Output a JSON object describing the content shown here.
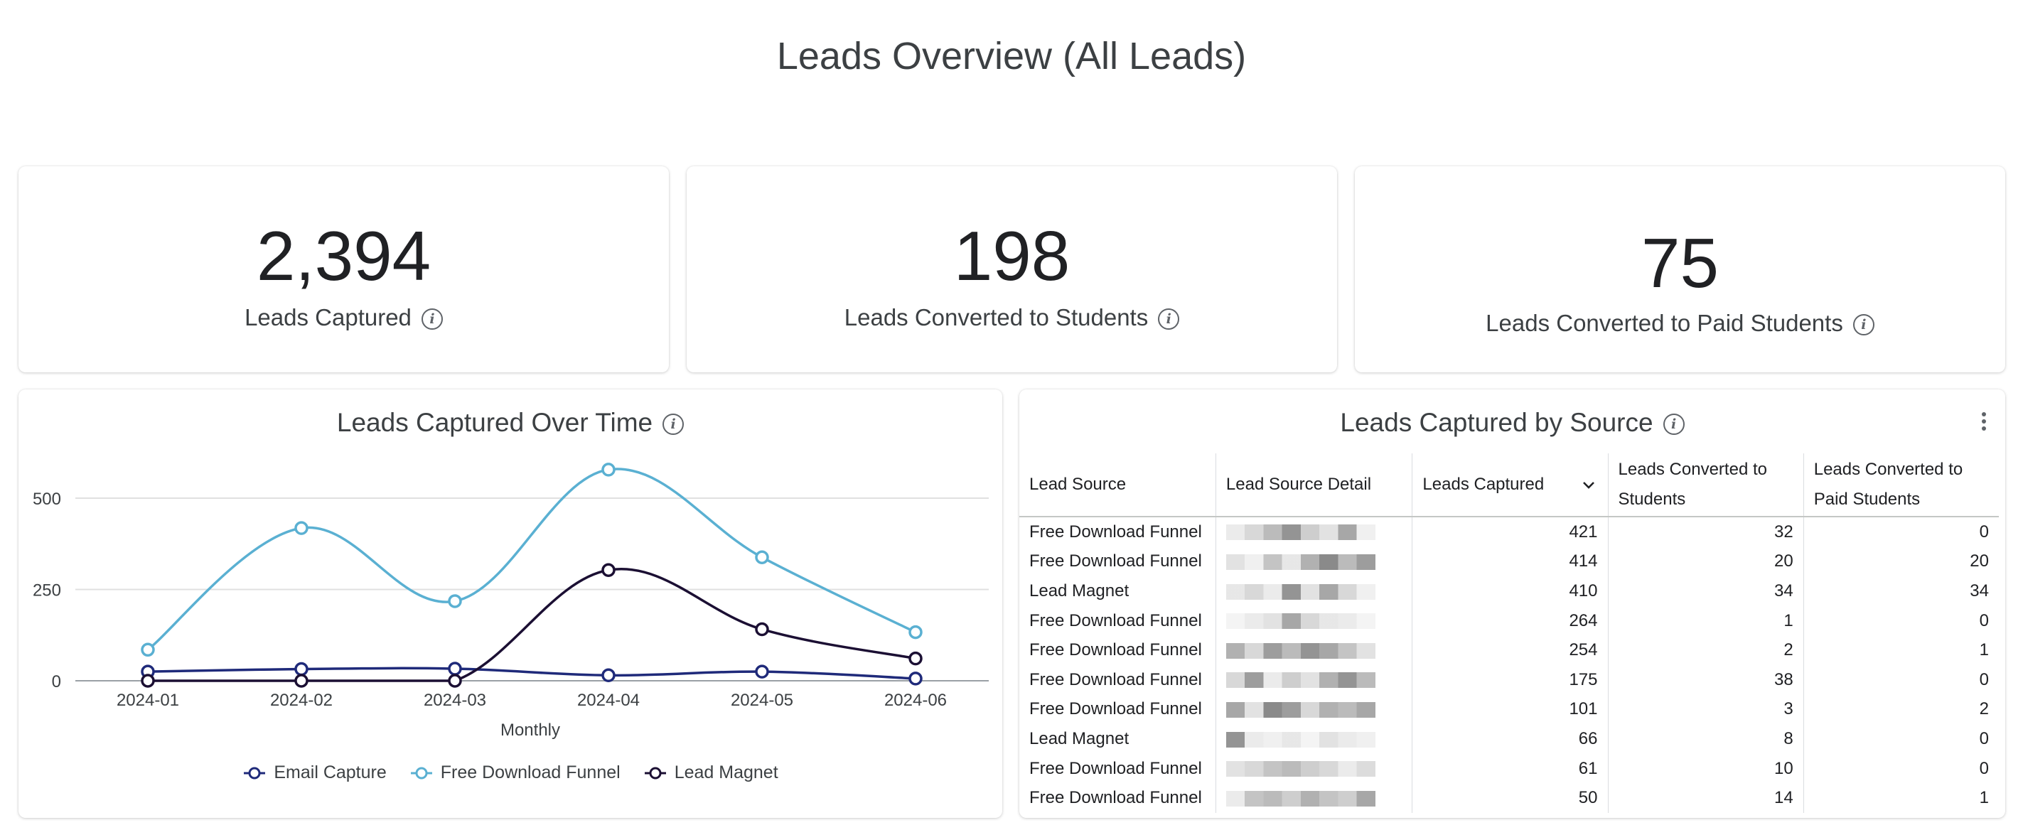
{
  "page_title": "Leads Overview (All Leads)",
  "kpis": [
    {
      "value": "2,394",
      "label": "Leads Captured"
    },
    {
      "value": "198",
      "label": "Leads Converted to Students"
    },
    {
      "value": "75",
      "label": "Leads Converted to Paid Students"
    }
  ],
  "info_glyph": "i",
  "line_chart": {
    "title": "Leads Captured Over Time",
    "chart_data": {
      "type": "line",
      "title": "Leads Captured Over Time",
      "xlabel": "Monthly",
      "ylabel": "",
      "categories": [
        "2024-01",
        "2024-02",
        "2024-03",
        "2024-04",
        "2024-05",
        "2024-06"
      ],
      "yticks": [
        0,
        250,
        500
      ],
      "ylim": [
        0,
        600
      ],
      "grid": true,
      "legend_position": "bottom",
      "series": [
        {
          "name": "Email Capture",
          "color": "#1f2a7a",
          "values": [
            25,
            32,
            33,
            15,
            25,
            6
          ]
        },
        {
          "name": "Free Download Funnel",
          "color": "#5ab0d2",
          "values": [
            85,
            418,
            218,
            578,
            338,
            133
          ]
        },
        {
          "name": "Lead Magnet",
          "color": "#1b0f33",
          "values": [
            0,
            0,
            0,
            303,
            141,
            61
          ]
        }
      ]
    }
  },
  "source_table": {
    "title": "Leads Captured by Source",
    "headers": [
      "Lead Source",
      "Lead Source Detail",
      "Leads Captured",
      "Leads Converted to Students",
      "Leads Converted to Paid Students"
    ],
    "rows": [
      {
        "source": "Free Download Funnel",
        "captured": "421",
        "students": "32",
        "paid": "0"
      },
      {
        "source": "Free Download Funnel",
        "captured": "414",
        "students": "20",
        "paid": "20"
      },
      {
        "source": "Lead Magnet",
        "captured": "410",
        "students": "34",
        "paid": "34"
      },
      {
        "source": "Free Download Funnel",
        "captured": "264",
        "students": "1",
        "paid": "0"
      },
      {
        "source": "Free Download Funnel",
        "captured": "254",
        "students": "2",
        "paid": "1"
      },
      {
        "source": "Free Download Funnel",
        "captured": "175",
        "students": "38",
        "paid": "0"
      },
      {
        "source": "Free Download Funnel",
        "captured": "101",
        "students": "3",
        "paid": "2"
      },
      {
        "source": "Lead Magnet",
        "captured": "66",
        "students": "8",
        "paid": "0"
      },
      {
        "source": "Free Download Funnel",
        "captured": "61",
        "students": "10",
        "paid": "0"
      },
      {
        "source": "Free Download Funnel",
        "captured": "50",
        "students": "14",
        "paid": "1"
      }
    ]
  }
}
